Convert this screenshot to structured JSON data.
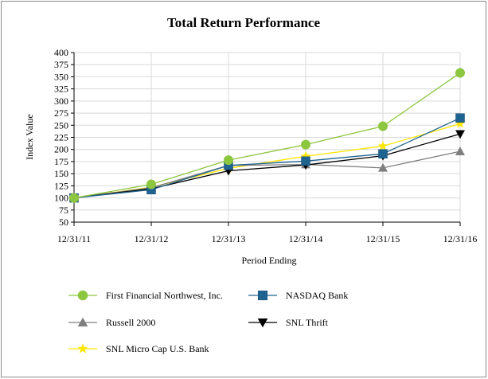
{
  "chart_data": {
    "type": "line",
    "title": "Total Return Performance",
    "xlabel": "Period Ending",
    "ylabel": "Index Value",
    "categories": [
      "12/31/11",
      "12/31/12",
      "12/31/13",
      "12/31/14",
      "12/31/15",
      "12/31/16"
    ],
    "yticks": [
      50,
      75,
      100,
      125,
      150,
      175,
      200,
      225,
      250,
      275,
      300,
      325,
      350,
      375,
      400
    ],
    "ylim": [
      50,
      400
    ],
    "grid": true,
    "legend_position": "bottom",
    "series": [
      {
        "name": "First Financial Northwest, Inc.",
        "color": "#8dc63f",
        "marker": "circle",
        "values": [
          100,
          128,
          178,
          210,
          248,
          358
        ]
      },
      {
        "name": "NASDAQ Bank",
        "color": "#1f6391",
        "marker": "square",
        "values": [
          100,
          117,
          167,
          176,
          191,
          265
        ]
      },
      {
        "name": "Russell 2000",
        "color": "#7f7f7f",
        "marker": "triangle-up",
        "values": [
          100,
          121,
          167,
          169,
          162,
          196
        ]
      },
      {
        "name": "SNL Thrift",
        "color": "#000000",
        "marker": "triangle-down",
        "values": [
          100,
          119,
          156,
          168,
          187,
          232
        ]
      },
      {
        "name": "SNL Micro Cap U.S. Bank",
        "color": "#ffe600",
        "marker": "star",
        "values": [
          100,
          122,
          161,
          186,
          207,
          253
        ]
      }
    ]
  }
}
